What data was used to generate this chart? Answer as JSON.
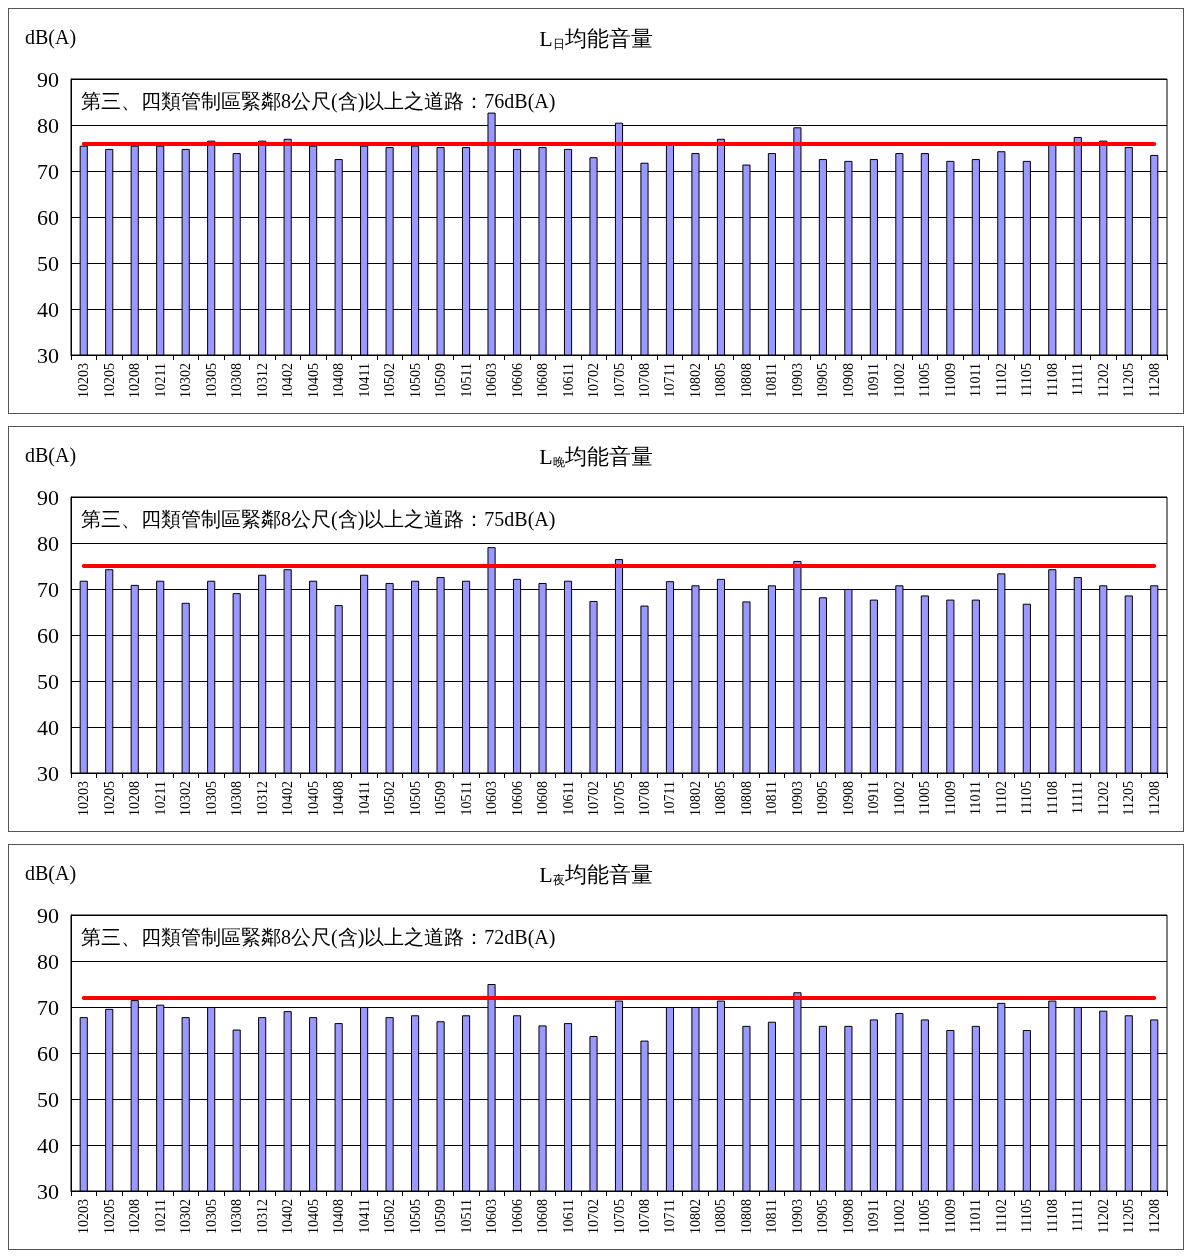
{
  "chart_data": [
    {
      "type": "bar",
      "title": "L$_{日}$均能音量",
      "ylabel": "dB(A)",
      "categories": [
        "10203",
        "10205",
        "10208",
        "10211",
        "10302",
        "10305",
        "10308",
        "10312",
        "10402",
        "10405",
        "10408",
        "10411",
        "10502",
        "10505",
        "10509",
        "10511",
        "10603",
        "10606",
        "10608",
        "10611",
        "10702",
        "10705",
        "10708",
        "10711",
        "10802",
        "10805",
        "10808",
        "10811",
        "10903",
        "10905",
        "10908",
        "10911",
        "11002",
        "11005",
        "11009",
        "11011",
        "11102",
        "11105",
        "11108",
        "11111",
        "11202",
        "11205",
        "11208"
      ],
      "values": [
        75.5,
        74.8,
        75.5,
        75.5,
        74.8,
        76.6,
        73.9,
        76.6,
        77.0,
        75.5,
        72.6,
        75.5,
        75.2,
        75.5,
        75.2,
        75.2,
        82.7,
        74.8,
        75.2,
        74.8,
        73.0,
        80.5,
        71.8,
        75.8,
        73.9,
        77.0,
        71.4,
        73.9,
        79.5,
        72.6,
        72.2,
        72.6,
        73.9,
        73.9,
        72.2,
        72.6,
        74.3,
        72.2,
        75.8,
        77.4,
        76.6,
        75.2,
        73.5
      ],
      "color": "#9999ff",
      "ylim": [
        30,
        90
      ],
      "yticks": [
        30,
        40,
        50,
        60,
        70,
        80,
        90
      ],
      "grid": "y",
      "ref_lines": [
        {
          "axis": "y",
          "value": 76,
          "label": "第三、四類管制區緊鄰8公尺(含)以上之道路：76dB(A)",
          "color": "#ff0000"
        }
      ]
    },
    {
      "type": "bar",
      "title": "L$_{晚}$均能音量",
      "ylabel": "dB(A)",
      "categories": [
        "10203",
        "10205",
        "10208",
        "10211",
        "10302",
        "10305",
        "10308",
        "10312",
        "10402",
        "10405",
        "10408",
        "10411",
        "10502",
        "10505",
        "10509",
        "10511",
        "10603",
        "10606",
        "10608",
        "10611",
        "10702",
        "10705",
        "10708",
        "10711",
        "10802",
        "10805",
        "10808",
        "10811",
        "10903",
        "10905",
        "10908",
        "10911",
        "11002",
        "11005",
        "11009",
        "11011",
        "11102",
        "11105",
        "11108",
        "11111",
        "11202",
        "11205",
        "11208"
      ],
      "values": [
        71.8,
        74.3,
        70.9,
        71.8,
        67.0,
        71.8,
        69.1,
        73.1,
        74.3,
        71.8,
        66.5,
        73.1,
        71.3,
        71.8,
        72.6,
        71.8,
        79.1,
        72.2,
        71.3,
        71.8,
        67.4,
        76.5,
        66.4,
        71.7,
        70.8,
        72.2,
        67.3,
        70.8,
        76.1,
        68.2,
        70.0,
        67.7,
        70.8,
        68.6,
        67.7,
        67.7,
        73.4,
        66.8,
        74.3,
        72.6,
        70.8,
        68.6,
        70.8
      ],
      "color": "#9999ff",
      "ylim": [
        30,
        90
      ],
      "yticks": [
        30,
        40,
        50,
        60,
        70,
        80,
        90
      ],
      "grid": "y",
      "ref_lines": [
        {
          "axis": "y",
          "value": 75,
          "label": "第三、四類管制區緊鄰8公尺(含)以上之道路：75dB(A)",
          "color": "#ff0000"
        }
      ]
    },
    {
      "type": "bar",
      "title": "L$_{夜}$均能音量",
      "ylabel": "dB(A)",
      "categories": [
        "10203",
        "10205",
        "10208",
        "10211",
        "10302",
        "10305",
        "10308",
        "10312",
        "10402",
        "10405",
        "10408",
        "10411",
        "10502",
        "10505",
        "10509",
        "10511",
        "10603",
        "10606",
        "10608",
        "10611",
        "10702",
        "10705",
        "10708",
        "10711",
        "10802",
        "10805",
        "10808",
        "10811",
        "10903",
        "10905",
        "10908",
        "10911",
        "11002",
        "11005",
        "11009",
        "11011",
        "11102",
        "11105",
        "11108",
        "11111",
        "11202",
        "11205",
        "11208"
      ],
      "values": [
        67.8,
        69.6,
        71.5,
        70.5,
        67.8,
        70.0,
        65.1,
        67.8,
        69.1,
        67.8,
        66.5,
        70.0,
        67.8,
        68.2,
        66.9,
        68.2,
        75.0,
        68.2,
        66.0,
        66.5,
        63.7,
        71.4,
        62.7,
        70.0,
        70.0,
        71.4,
        65.9,
        66.8,
        73.2,
        65.9,
        65.9,
        67.3,
        68.7,
        67.3,
        65.0,
        65.9,
        70.9,
        65.0,
        71.4,
        70.0,
        69.2,
        68.2,
        67.3
      ],
      "color": "#9999ff",
      "ylim": [
        30,
        90
      ],
      "yticks": [
        30,
        40,
        50,
        60,
        70,
        80,
        90
      ],
      "grid": "y",
      "ref_lines": [
        {
          "axis": "y",
          "value": 72,
          "label": "第三、四類管制區緊鄰8公尺(含)以上之道路：72dB(A)",
          "color": "#ff0000"
        }
      ]
    }
  ]
}
